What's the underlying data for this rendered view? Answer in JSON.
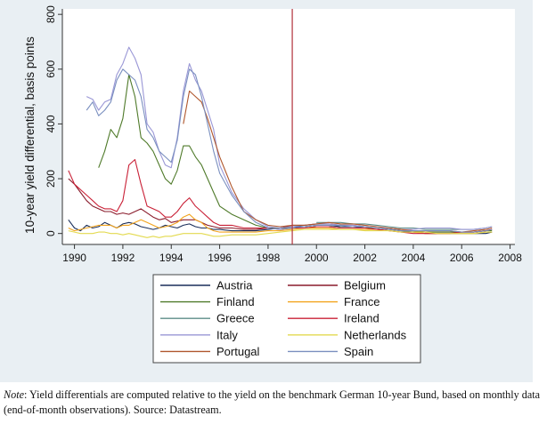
{
  "chart_data": {
    "type": "line",
    "title": "",
    "xlabel": "",
    "ylabel": "10-year yield differential, basis points",
    "xlim": [
      1989.5,
      2008.2
    ],
    "ylim": [
      -40,
      820
    ],
    "xticks": [
      "1990",
      "1992",
      "1994",
      "1996",
      "1998",
      "2000",
      "2002",
      "2004",
      "2006",
      "2008"
    ],
    "yticks": [
      "0",
      "200",
      "400",
      "600",
      "800"
    ],
    "vline": 1999,
    "x_points": [
      1989.75,
      1990.0,
      1990.25,
      1990.5,
      1990.75,
      1991.0,
      1991.25,
      1991.5,
      1991.75,
      1992.0,
      1992.25,
      1992.5,
      1992.75,
      1993.0,
      1993.25,
      1993.5,
      1993.75,
      1994.0,
      1994.25,
      1994.5,
      1994.75,
      1995.0,
      1995.25,
      1995.5,
      1995.75,
      1996.0,
      1996.5,
      1997.0,
      1997.5,
      1998.0,
      1998.5,
      1999.0,
      1999.5,
      2000.0,
      2000.5,
      2001.0,
      2001.5,
      2002.0,
      2002.5,
      2003.0,
      2003.5,
      2004.0,
      2004.5,
      2005.0,
      2005.5,
      2006.0,
      2006.5,
      2007.0,
      2007.25
    ],
    "series": [
      {
        "name": "Austria",
        "color": "#1a2e5a",
        "values": [
          50,
          20,
          10,
          30,
          20,
          25,
          40,
          30,
          20,
          35,
          40,
          35,
          25,
          20,
          15,
          20,
          30,
          25,
          20,
          30,
          35,
          25,
          20,
          20,
          15,
          15,
          10,
          10,
          10,
          15,
          20,
          25,
          25,
          30,
          30,
          25,
          25,
          20,
          20,
          15,
          10,
          5,
          0,
          0,
          0,
          0,
          0,
          0,
          5
        ]
      },
      {
        "name": "Belgium",
        "color": "#8a1c2c",
        "values": [
          200,
          180,
          150,
          120,
          100,
          90,
          80,
          80,
          70,
          75,
          70,
          80,
          90,
          75,
          60,
          50,
          55,
          40,
          45,
          50,
          50,
          50,
          40,
          30,
          25,
          20,
          20,
          15,
          15,
          20,
          20,
          30,
          30,
          35,
          35,
          30,
          30,
          25,
          20,
          20,
          15,
          10,
          5,
          5,
          5,
          5,
          5,
          10,
          15
        ]
      },
      {
        "name": "Finland",
        "color": "#4f7a2a",
        "values": [
          null,
          null,
          null,
          null,
          null,
          240,
          300,
          380,
          350,
          420,
          580,
          500,
          350,
          330,
          300,
          250,
          200,
          180,
          230,
          320,
          320,
          280,
          250,
          200,
          150,
          100,
          70,
          50,
          30,
          20,
          20,
          20,
          20,
          25,
          25,
          20,
          20,
          20,
          20,
          15,
          10,
          10,
          5,
          5,
          5,
          5,
          5,
          10,
          10
        ]
      },
      {
        "name": "France",
        "color": "#f2a31c",
        "values": [
          20,
          10,
          15,
          20,
          25,
          30,
          30,
          30,
          20,
          30,
          30,
          40,
          50,
          40,
          30,
          20,
          25,
          30,
          40,
          60,
          70,
          50,
          40,
          20,
          10,
          5,
          5,
          5,
          5,
          10,
          10,
          15,
          20,
          20,
          20,
          15,
          15,
          15,
          15,
          10,
          5,
          5,
          0,
          0,
          0,
          0,
          0,
          5,
          5
        ]
      },
      {
        "name": "Greece",
        "color": "#5c8c87",
        "values": [
          null,
          null,
          null,
          null,
          null,
          null,
          null,
          null,
          null,
          null,
          null,
          null,
          null,
          null,
          null,
          null,
          null,
          null,
          null,
          null,
          null,
          null,
          null,
          null,
          null,
          null,
          null,
          null,
          null,
          null,
          null,
          null,
          null,
          40,
          40,
          40,
          35,
          35,
          30,
          25,
          20,
          20,
          15,
          15,
          15,
          15,
          15,
          20,
          25
        ]
      },
      {
        "name": "Ireland",
        "color": "#c92036",
        "values": [
          230,
          180,
          160,
          140,
          120,
          100,
          90,
          90,
          80,
          120,
          250,
          270,
          180,
          100,
          90,
          80,
          60,
          60,
          80,
          110,
          130,
          100,
          80,
          60,
          40,
          30,
          30,
          20,
          20,
          20,
          15,
          20,
          20,
          25,
          25,
          20,
          20,
          20,
          15,
          10,
          5,
          0,
          0,
          0,
          0,
          5,
          5,
          10,
          15
        ]
      },
      {
        "name": "Italy",
        "color": "#9a97d6",
        "values": [
          null,
          null,
          null,
          500,
          490,
          450,
          480,
          490,
          580,
          620,
          680,
          640,
          580,
          400,
          370,
          300,
          250,
          240,
          350,
          520,
          620,
          560,
          520,
          450,
          380,
          250,
          150,
          90,
          50,
          25,
          20,
          25,
          30,
          35,
          35,
          30,
          30,
          25,
          20,
          20,
          15,
          15,
          20,
          20,
          20,
          15,
          15,
          20,
          25
        ]
      },
      {
        "name": "Netherlands",
        "color": "#e3da4f",
        "values": [
          10,
          5,
          0,
          0,
          0,
          5,
          5,
          0,
          0,
          -5,
          0,
          -5,
          -10,
          -15,
          -10,
          -15,
          -10,
          -10,
          -5,
          0,
          0,
          0,
          0,
          -5,
          -10,
          -10,
          -5,
          -5,
          -5,
          0,
          5,
          10,
          15,
          15,
          15,
          15,
          15,
          10,
          10,
          10,
          5,
          5,
          5,
          0,
          0,
          0,
          0,
          5,
          5
        ]
      },
      {
        "name": "Portugal",
        "color": "#b0572d",
        "values": [
          null,
          null,
          null,
          null,
          null,
          null,
          null,
          null,
          null,
          null,
          null,
          null,
          null,
          null,
          null,
          null,
          null,
          null,
          null,
          400,
          520,
          500,
          480,
          420,
          350,
          280,
          170,
          80,
          50,
          30,
          25,
          30,
          30,
          35,
          40,
          35,
          35,
          30,
          25,
          20,
          15,
          10,
          10,
          10,
          10,
          5,
          10,
          15,
          20
        ]
      },
      {
        "name": "Spain",
        "color": "#7a8fbf",
        "values": [
          null,
          null,
          null,
          450,
          480,
          430,
          450,
          480,
          560,
          600,
          580,
          560,
          500,
          380,
          350,
          300,
          280,
          260,
          340,
          500,
          600,
          580,
          500,
          400,
          300,
          220,
          140,
          80,
          40,
          20,
          15,
          20,
          25,
          30,
          30,
          30,
          25,
          25,
          20,
          15,
          10,
          10,
          10,
          10,
          10,
          5,
          5,
          10,
          15
        ]
      }
    ]
  },
  "note": {
    "label": "Note",
    "text": ": Yield differentials are computed relative to the yield on the benchmark German 10-year Bund, based on monthly data (end-of-month observations). Source: Datastream."
  }
}
